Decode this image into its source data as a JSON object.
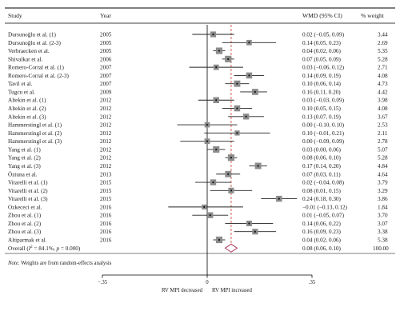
{
  "chart_data": {
    "type": "forest",
    "headers": {
      "study": "Study",
      "year": "Year",
      "effect": "WMD (95% CI)",
      "weight": "% weight"
    },
    "rows": [
      {
        "study": "Dursunoğlu et al. (1)",
        "year": "2005",
        "ci_text": "0.02 (−0.05, 0.09)",
        "weight_text": "3.44",
        "est": 0.02,
        "lo": -0.05,
        "hi": 0.09,
        "weight": 3.44
      },
      {
        "study": "Dursunoğlu et al. (2-3)",
        "year": "2005",
        "ci_text": "0.14 (0.05, 0.23)",
        "weight_text": "2.69",
        "est": 0.14,
        "lo": 0.05,
        "hi": 0.23,
        "weight": 2.69
      },
      {
        "study": "Verbraecken et al.",
        "year": "2005",
        "ci_text": "0.04 (0.02, 0.06)",
        "weight_text": "5.35",
        "est": 0.04,
        "lo": 0.02,
        "hi": 0.06,
        "weight": 5.35
      },
      {
        "study": "Shivalkar et al.",
        "year": "2006",
        "ci_text": "0.07 (0.05, 0.09)",
        "weight_text": "5.28",
        "est": 0.07,
        "lo": 0.05,
        "hi": 0.09,
        "weight": 5.28
      },
      {
        "study": "Romero-Corral et al. (1)",
        "year": "2007",
        "ci_text": "0.03 (−0.06, 0.12)",
        "weight_text": "2.71",
        "est": 0.03,
        "lo": -0.06,
        "hi": 0.12,
        "weight": 2.71
      },
      {
        "study": "Romero-Corral et al. (2-3)",
        "year": "2007",
        "ci_text": "0.14 (0.09, 0.19)",
        "weight_text": "4.08",
        "est": 0.14,
        "lo": 0.09,
        "hi": 0.19,
        "weight": 4.08
      },
      {
        "study": "Tavil et al.",
        "year": "2007",
        "ci_text": "0.10 (0.06, 0.14)",
        "weight_text": "4.73",
        "est": 0.1,
        "lo": 0.06,
        "hi": 0.14,
        "weight": 4.73
      },
      {
        "study": "Tugcu et al.",
        "year": "2009",
        "ci_text": "0.16 (0.11, 0.20)",
        "weight_text": "4.42",
        "est": 0.16,
        "lo": 0.11,
        "hi": 0.2,
        "weight": 4.42
      },
      {
        "study": "Altekin et al. (1)",
        "year": "2012",
        "ci_text": "0.03 (−0.03, 0.09)",
        "weight_text": "3.98",
        "est": 0.03,
        "lo": -0.03,
        "hi": 0.09,
        "weight": 3.98
      },
      {
        "study": "Altekin et al. (2)",
        "year": "2012",
        "ci_text": "0.10 (0.05, 0.15)",
        "weight_text": "4.08",
        "est": 0.1,
        "lo": 0.05,
        "hi": 0.15,
        "weight": 4.08
      },
      {
        "study": "Altekin et al. (3)",
        "year": "2012",
        "ci_text": "0.13 (0.07, 0.19)",
        "weight_text": "3.67",
        "est": 0.13,
        "lo": 0.07,
        "hi": 0.19,
        "weight": 3.67
      },
      {
        "study": "Hammerstingl et al. (1)",
        "year": "2012",
        "ci_text": "0.00 (−0.10, 0.10)",
        "weight_text": "2.53",
        "est": 0.0,
        "lo": -0.1,
        "hi": 0.1,
        "weight": 2.53
      },
      {
        "study": "Hammerstingl et al. (2)",
        "year": "2012",
        "ci_text": "0.10 (−0.01, 0.21)",
        "weight_text": "2.11",
        "est": 0.1,
        "lo": -0.01,
        "hi": 0.21,
        "weight": 2.11
      },
      {
        "study": "Hammerstingl et al. (3)",
        "year": "2012",
        "ci_text": "0.00 (−0.09, 0.09)",
        "weight_text": "2.78",
        "est": 0.0,
        "lo": -0.09,
        "hi": 0.09,
        "weight": 2.78
      },
      {
        "study": "Yang et al. (1)",
        "year": "2012",
        "ci_text": "0.03 (0.00, 0.06)",
        "weight_text": "5.07",
        "est": 0.03,
        "lo": 0.0,
        "hi": 0.06,
        "weight": 5.07
      },
      {
        "study": "Yang et al. (2)",
        "year": "2012",
        "ci_text": "0.08 (0.06, 0.10)",
        "weight_text": "5.28",
        "est": 0.08,
        "lo": 0.06,
        "hi": 0.1,
        "weight": 5.28
      },
      {
        "study": "Yang et al. (3)",
        "year": "2012",
        "ci_text": "0.17 (0.14, 0.20)",
        "weight_text": "4.84",
        "est": 0.17,
        "lo": 0.14,
        "hi": 0.2,
        "weight": 4.84
      },
      {
        "study": "Öztuna et al.",
        "year": "2013",
        "ci_text": "0.07 (0.03, 0.11)",
        "weight_text": "4.64",
        "est": 0.07,
        "lo": 0.03,
        "hi": 0.11,
        "weight": 4.64
      },
      {
        "study": "Vitarelli et al. (1)",
        "year": "2015",
        "ci_text": "0.02 (−0.04, 0.08)",
        "weight_text": "3.79",
        "est": 0.02,
        "lo": -0.04,
        "hi": 0.08,
        "weight": 3.79
      },
      {
        "study": "Vitarelli et al. (2)",
        "year": "2015",
        "ci_text": "0.08 (0.01, 0.15)",
        "weight_text": "3.29",
        "est": 0.08,
        "lo": 0.01,
        "hi": 0.15,
        "weight": 3.29
      },
      {
        "study": "Vitarelli et al. (3)",
        "year": "2015",
        "ci_text": "0.24 (0.18, 0.30)",
        "weight_text": "3.86",
        "est": 0.24,
        "lo": 0.18,
        "hi": 0.3,
        "weight": 3.86
      },
      {
        "study": "Ozkececi et al.",
        "year": "2016",
        "ci_text": "−0.01 (−0.13, 0.12)",
        "weight_text": "1.84",
        "est": -0.01,
        "lo": -0.13,
        "hi": 0.12,
        "weight": 1.84
      },
      {
        "study": "Zhou et al. (1)",
        "year": "2016",
        "ci_text": "0.01 (−0.05, 0.07)",
        "weight_text": "3.70",
        "est": 0.01,
        "lo": -0.05,
        "hi": 0.07,
        "weight": 3.7
      },
      {
        "study": "Zhou et al. (2)",
        "year": "2016",
        "ci_text": "0.14 (0.06, 0.22)",
        "weight_text": "3.07",
        "est": 0.14,
        "lo": 0.06,
        "hi": 0.22,
        "weight": 3.07
      },
      {
        "study": "Zhou et al. (3)",
        "year": "2016",
        "ci_text": "0.16 (0.09, 0.23)",
        "weight_text": "3.38",
        "est": 0.16,
        "lo": 0.09,
        "hi": 0.23,
        "weight": 3.38
      },
      {
        "study": "Altiparmak et al.",
        "year": "2016",
        "ci_text": "0.04 (0.02, 0.06)",
        "weight_text": "5.38",
        "est": 0.04,
        "lo": 0.02,
        "hi": 0.06,
        "weight": 5.38
      }
    ],
    "overall": {
      "label_prefix": "Overall (",
      "i2_text": "I",
      "i2_sup": "2",
      "label_mid": " = 84.1%, ",
      "p_text": "p",
      "label_end": " = 0.000)",
      "ci_text": "0.08 (0.06, 0.10)",
      "weight_text": "100.00",
      "est": 0.08,
      "lo": 0.06,
      "hi": 0.1
    },
    "note_label": "Note.",
    "note_text": " Weights are from random-effects analysis",
    "x_ticks": [
      {
        "value": -0.35,
        "label": "−.35"
      },
      {
        "value": 0,
        "label": "0"
      },
      {
        "value": 0.35,
        "label": ".35"
      }
    ],
    "x_range": [
      -0.35,
      0.35
    ],
    "left_label": "RV MPI decreased",
    "right_label": "RV MPI increased",
    "colors": {
      "ci_line": "#222222",
      "box": "#8c8c8c",
      "ref_line": "#000000",
      "overall_line": "#c0392b",
      "diamond": "#b03a5b"
    }
  }
}
